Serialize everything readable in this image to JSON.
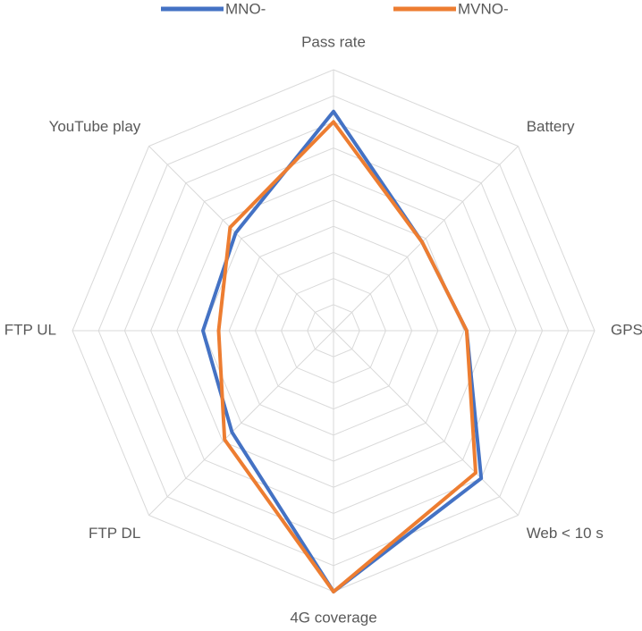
{
  "chart_data": {
    "type": "radar",
    "categories": [
      "Pass rate",
      "Battery",
      "GPS",
      "Web < 10 s",
      "4G coverage",
      "FTP DL",
      "FTP UL",
      "YouTube play"
    ],
    "series": [
      {
        "name": "MNO-",
        "color": "#4472c4",
        "values": [
          84,
          48,
          51,
          80,
          100,
          55,
          50,
          53
        ]
      },
      {
        "name": "MVNO-",
        "color": "#ed7d31",
        "values": [
          80,
          48,
          51,
          77,
          100,
          59,
          44,
          56
        ]
      }
    ],
    "ylim": [
      0,
      100
    ],
    "yticks": [
      10,
      20,
      30,
      40,
      50,
      60,
      70,
      80,
      90,
      100
    ],
    "grid": true,
    "legend": "top"
  }
}
